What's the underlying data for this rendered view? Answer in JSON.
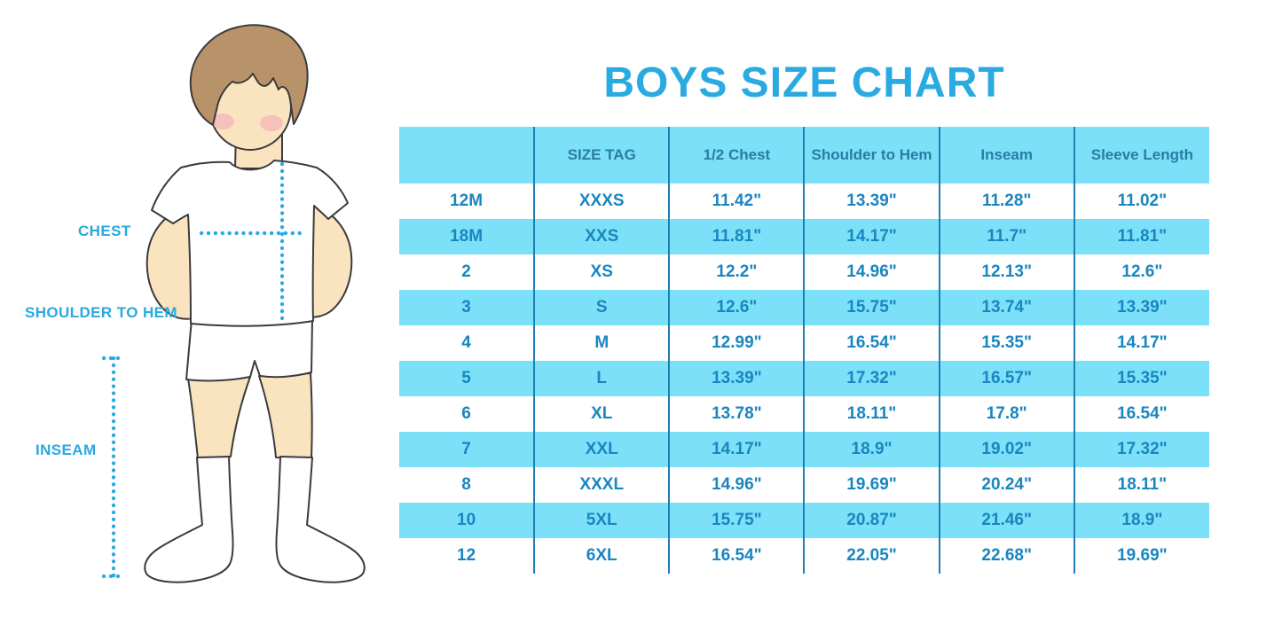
{
  "title": "BOYS SIZE CHART",
  "diagram": {
    "chest_label": "CHEST",
    "shoulder_to_hem_label": "SHOULDER TO HEM",
    "inseam_label": "INSEAM"
  },
  "table": {
    "columns": [
      "",
      "SIZE TAG",
      "1/2 Chest",
      "Shoulder to Hem",
      "Inseam",
      "Sleeve Length"
    ],
    "rows": [
      [
        "12M",
        "XXXS",
        "11.42\"",
        "13.39\"",
        "11.28\"",
        "11.02\""
      ],
      [
        "18M",
        "XXS",
        "11.81\"",
        "14.17\"",
        "11.7\"",
        "11.81\""
      ],
      [
        "2",
        "XS",
        "12.2\"",
        "14.96\"",
        "12.13\"",
        "12.6\""
      ],
      [
        "3",
        "S",
        "12.6\"",
        "15.75\"",
        "13.74\"",
        "13.39\""
      ],
      [
        "4",
        "M",
        "12.99\"",
        "16.54\"",
        "15.35\"",
        "14.17\""
      ],
      [
        "5",
        "L",
        "13.39\"",
        "17.32\"",
        "16.57\"",
        "15.35\""
      ],
      [
        "6",
        "XL",
        "13.78\"",
        "18.11\"",
        "17.8\"",
        "16.54\""
      ],
      [
        "7",
        "XXL",
        "14.17\"",
        "18.9\"",
        "19.02\"",
        "17.32\""
      ],
      [
        "8",
        "XXXL",
        "14.96\"",
        "19.69\"",
        "20.24\"",
        "18.11\""
      ],
      [
        "10",
        "5XL",
        "15.75\"",
        "20.87\"",
        "21.46\"",
        "18.9\""
      ],
      [
        "12",
        "6XL",
        "16.54\"",
        "22.05\"",
        "22.68\"",
        "19.69\""
      ]
    ]
  },
  "colors": {
    "title_blue": "#29ABE2",
    "label_blue": "#29A9E1",
    "dotted_line": "#29A9E1",
    "table_header_bg": "#7BE0F8",
    "table_row_alt_bg": "#7BE0F8",
    "table_header_text": "#2A7CA3",
    "table_body_text": "#1986BF",
    "table_divider": "#1E7FB5",
    "skin_col": "#FAE4C0",
    "hair_col": "#B8936A",
    "blush_col": "#F0A4B4",
    "outline_col": "#3B3B3B"
  }
}
